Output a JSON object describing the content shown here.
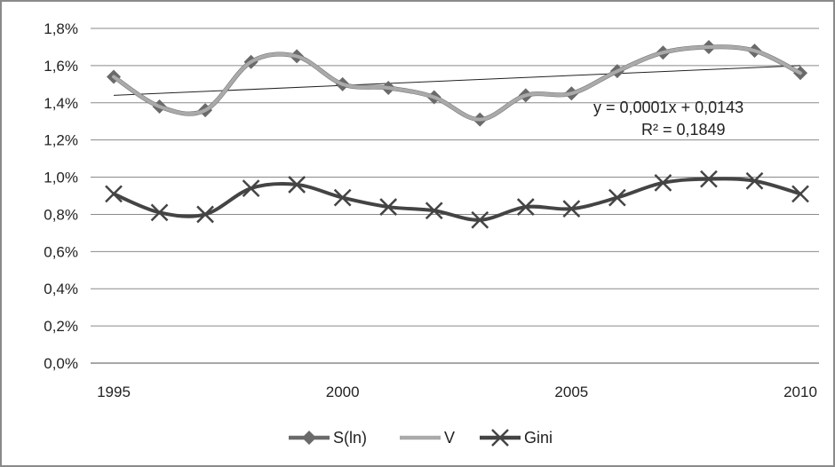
{
  "chart_data": {
    "type": "line",
    "x": [
      1995,
      1996,
      1997,
      1998,
      1999,
      2000,
      2001,
      2002,
      2003,
      2004,
      2005,
      2006,
      2007,
      2008,
      2009,
      2010
    ],
    "x_tick_labels": [
      "1995",
      "2000",
      "2005",
      "2010"
    ],
    "x_tick_values": [
      1995,
      2000,
      2005,
      2010
    ],
    "y_tick_labels": [
      "0,0%",
      "0,2%",
      "0,4%",
      "0,6%",
      "0,8%",
      "1,0%",
      "1,2%",
      "1,4%",
      "1,6%",
      "1,8%"
    ],
    "ylim": [
      0,
      0.018
    ],
    "grid": true,
    "legend_position": "bottom",
    "series": [
      {
        "name": "S(ln)",
        "color": "#6a6a6a",
        "marker": "diamond",
        "values": [
          0.0154,
          0.0138,
          0.0136,
          0.0162,
          0.0165,
          0.015,
          0.0148,
          0.0143,
          0.0131,
          0.0144,
          0.0145,
          0.0157,
          0.0167,
          0.017,
          0.0168,
          0.0156
        ]
      },
      {
        "name": "V",
        "color": "#aaaaaa",
        "marker": "none",
        "values": [
          0.0154,
          0.0138,
          0.0136,
          0.0162,
          0.0165,
          0.015,
          0.0148,
          0.0143,
          0.0131,
          0.0144,
          0.0145,
          0.0157,
          0.0167,
          0.017,
          0.0168,
          0.0156
        ]
      },
      {
        "name": "Gini",
        "color": "#444444",
        "marker": "x",
        "values": [
          0.0091,
          0.0081,
          0.008,
          0.0094,
          0.0096,
          0.0089,
          0.0084,
          0.0082,
          0.0077,
          0.0084,
          0.0083,
          0.0089,
          0.0097,
          0.0099,
          0.0098,
          0.0091
        ]
      }
    ],
    "trendline": {
      "x": [
        1995,
        2010
      ],
      "values": [
        0.0144,
        0.016
      ],
      "equation": "y = 0,0001x + 0,0143",
      "r_squared": "R² = 0,1849"
    }
  }
}
